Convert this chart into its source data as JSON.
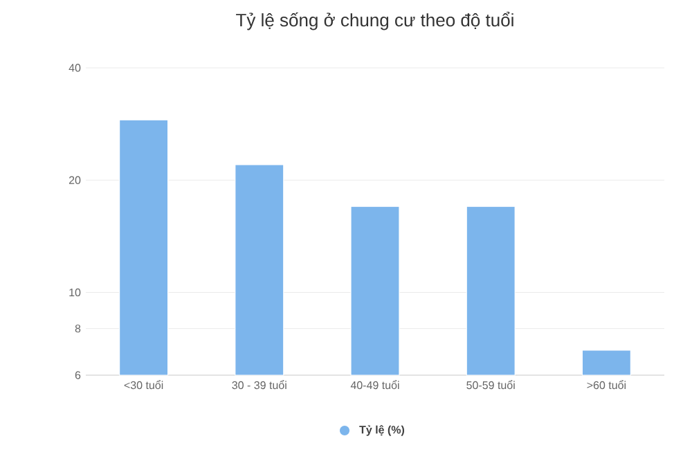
{
  "chart_data": {
    "type": "bar",
    "title": "Tỷ lệ sống ở chung cư theo độ tuổi",
    "categories": [
      "<30 tuổi",
      "30 - 39 tuổi",
      "40-49 tuổi",
      "50-59 tuổi",
      ">60 tuổi"
    ],
    "series": [
      {
        "name": "Tỷ lệ (%)",
        "color": "#7cb5ec",
        "values": [
          29,
          22,
          17,
          17,
          7
        ]
      }
    ],
    "log": "y",
    "ylim": [
      6,
      40
    ],
    "yticks": [
      6,
      8,
      10,
      20,
      40
    ],
    "grid": "y",
    "legend": "bottom"
  }
}
